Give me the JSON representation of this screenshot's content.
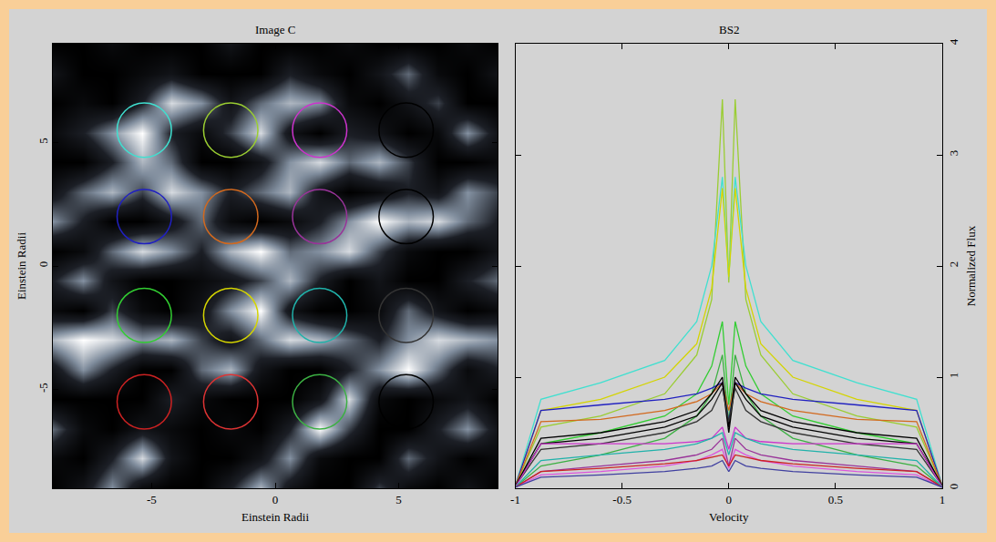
{
  "chart_data": [
    {
      "type": "heatmap",
      "title": "Image C",
      "x_label": "Einstein Radii",
      "y_label": "Einstein Radii",
      "xlim": [
        -9,
        9
      ],
      "ylim": [
        -9,
        9
      ],
      "xticks": [
        -5,
        0,
        5
      ],
      "yticks": [
        -5,
        0,
        5
      ],
      "x": [
        -9,
        -7.8,
        -6.6,
        -5.4,
        -4.2,
        -3,
        -1.8,
        -0.6,
        0.6,
        1.8,
        3,
        4.2,
        5.4,
        6.6,
        7.8,
        9
      ],
      "y": [
        -9,
        -7.8,
        -6.6,
        -5.4,
        -4.2,
        -3,
        -1.8,
        -0.6,
        0.6,
        1.8,
        3,
        4.2,
        5.4,
        6.6,
        7.8,
        9
      ],
      "cells": [
        [
          0,
          0.2,
          0.6,
          0.1,
          0,
          0,
          0.3,
          0.7,
          0.2,
          0,
          0,
          0.4,
          0.1,
          0,
          0.2,
          0
        ],
        [
          0.1,
          0,
          0.3,
          0.8,
          0.2,
          0,
          0,
          0.2,
          0.6,
          0.1,
          0,
          0,
          0.5,
          0.2,
          0,
          0.1
        ],
        [
          0.5,
          0.1,
          0,
          0.2,
          0.1,
          0,
          0.1,
          0,
          0.3,
          0.9,
          0.4,
          0,
          0,
          0.3,
          0.6,
          0.2
        ],
        [
          0,
          0,
          0,
          0,
          0.3,
          0.1,
          0,
          0,
          0,
          0.2,
          0.8,
          0.1,
          0,
          0.1,
          0.2,
          0
        ],
        [
          0.2,
          0.6,
          0.3,
          0,
          0,
          0.5,
          0.7,
          0.2,
          0,
          0,
          0.3,
          0.6,
          0.9,
          0.5,
          0.1,
          0.3
        ],
        [
          0.7,
          0.9,
          0.8,
          0.6,
          0.7,
          0.4,
          0.2,
          0.5,
          0.8,
          0.7,
          0.5,
          0.3,
          0.6,
          0.8,
          0.7,
          0.6
        ],
        [
          0.1,
          0,
          0.4,
          0.1,
          0,
          0.2,
          0.6,
          0.9,
          0.2,
          0,
          0,
          0.1,
          0.5,
          0.2,
          0,
          0.1
        ],
        [
          0.3,
          0.6,
          0.2,
          0,
          0,
          0.1,
          0.2,
          0.4,
          0.7,
          0.3,
          0,
          0.2,
          0,
          0,
          0.3,
          0.5
        ],
        [
          0,
          0.1,
          0.5,
          0.8,
          0.6,
          0.3,
          0.7,
          0.9,
          0.5,
          0.6,
          0.8,
          0.4,
          0.1,
          0,
          0,
          0.2
        ],
        [
          0.6,
          0.3,
          0,
          0,
          0.2,
          0.5,
          0.1,
          0,
          0.1,
          0.3,
          0.6,
          0.9,
          0.7,
          0.8,
          0.5,
          0.3
        ],
        [
          0.2,
          0.5,
          0.7,
          0.4,
          0.8,
          0.6,
          0.3,
          0.5,
          0.7,
          0.2,
          0,
          0.1,
          0.3,
          0.2,
          0.6,
          0.4
        ],
        [
          0,
          0,
          0.3,
          0.7,
          0.5,
          0,
          0,
          0.2,
          0.6,
          0.8,
          0.5,
          0.7,
          0.4,
          0,
          0,
          0.1
        ],
        [
          0.1,
          0.3,
          0.6,
          0.9,
          0.3,
          0.1,
          0.4,
          0.8,
          0.2,
          0,
          0.3,
          0.2,
          0,
          0.1,
          0.6,
          0.2
        ],
        [
          0,
          0.1,
          0,
          0.3,
          0.8,
          0.6,
          0.2,
          0.5,
          0.7,
          0.6,
          0.1,
          0,
          0.2,
          0.4,
          0,
          0
        ],
        [
          0.2,
          0,
          0,
          0.1,
          0.2,
          0,
          0,
          0,
          0.3,
          0.1,
          0,
          0.2,
          0.5,
          0.1,
          0,
          0.2
        ],
        [
          0,
          0,
          0.1,
          0,
          0,
          0,
          0.2,
          0,
          0,
          0,
          0.1,
          0,
          0,
          0,
          0.1,
          0
        ]
      ],
      "circles": [
        {
          "x": -5.3,
          "y": 5.5,
          "r": 1.1,
          "color": "#40e0d0"
        },
        {
          "x": -1.8,
          "y": 5.5,
          "r": 1.1,
          "color": "#9acd32"
        },
        {
          "x": 1.8,
          "y": 5.5,
          "r": 1.1,
          "color": "#cc33cc"
        },
        {
          "x": 5.3,
          "y": 5.5,
          "r": 1.1,
          "color": "#000000"
        },
        {
          "x": -5.3,
          "y": 2,
          "r": 1.1,
          "color": "#2020c0"
        },
        {
          "x": -1.8,
          "y": 2,
          "r": 1.1,
          "color": "#d2691e"
        },
        {
          "x": 1.8,
          "y": 2,
          "r": 1.1,
          "color": "#993399"
        },
        {
          "x": 5.3,
          "y": 2,
          "r": 1.1,
          "color": "#000000"
        },
        {
          "x": -5.3,
          "y": -2,
          "r": 1.1,
          "color": "#32cd32"
        },
        {
          "x": -1.8,
          "y": -2,
          "r": 1.1,
          "color": "#d4d400"
        },
        {
          "x": 1.8,
          "y": -2,
          "r": 1.1,
          "color": "#20b2aa"
        },
        {
          "x": 5.3,
          "y": -2,
          "r": 1.1,
          "color": "#333333"
        },
        {
          "x": -5.3,
          "y": -5.5,
          "r": 1.1,
          "color": "#cc2222"
        },
        {
          "x": -1.8,
          "y": -5.5,
          "r": 1.1,
          "color": "#dd3333"
        },
        {
          "x": 1.8,
          "y": -5.5,
          "r": 1.1,
          "color": "#3cb043"
        },
        {
          "x": 5.3,
          "y": -5.5,
          "r": 1.1,
          "color": "#000000"
        }
      ]
    },
    {
      "type": "line",
      "title": "BS2",
      "x_label": "Velocity",
      "y_label": "Normalized Flux",
      "xlim": [
        -1,
        1
      ],
      "ylim": [
        0,
        4
      ],
      "xticks": [
        -1,
        -0.5,
        0,
        0.5,
        1
      ],
      "yticks": [
        0,
        1,
        2,
        3,
        4
      ],
      "x": [
        -1,
        -0.88,
        -0.6,
        -0.3,
        -0.15,
        -0.08,
        -0.03,
        0,
        0.03,
        0.08,
        0.15,
        0.3,
        0.6,
        0.88,
        1
      ],
      "series": [
        {
          "color": "#9acd32",
          "values": [
            0.02,
            0.55,
            0.65,
            0.85,
            1.2,
            1.7,
            3.5,
            1.85,
            3.5,
            1.7,
            1.2,
            0.85,
            0.65,
            0.55,
            0.02
          ]
        },
        {
          "color": "#40e0d0",
          "values": [
            0.02,
            0.8,
            0.95,
            1.15,
            1.5,
            2.0,
            2.8,
            1.9,
            2.8,
            2.0,
            1.5,
            1.15,
            0.95,
            0.8,
            0.02
          ]
        },
        {
          "color": "#d4d400",
          "values": [
            0.02,
            0.7,
            0.8,
            1.0,
            1.3,
            1.8,
            2.7,
            1.9,
            2.7,
            1.8,
            1.3,
            1.0,
            0.8,
            0.7,
            0.02
          ]
        },
        {
          "color": "#32cd32",
          "values": [
            0.02,
            0.4,
            0.5,
            0.65,
            0.85,
            1.1,
            1.5,
            0.75,
            1.5,
            1.1,
            0.85,
            0.65,
            0.5,
            0.4,
            0.02
          ]
        },
        {
          "color": "#3cb043",
          "values": [
            0.01,
            0.2,
            0.3,
            0.45,
            0.65,
            0.85,
            1.2,
            0.6,
            1.2,
            0.85,
            0.65,
            0.45,
            0.3,
            0.2,
            0.01
          ]
        },
        {
          "color": "#2020c0",
          "values": [
            0.02,
            0.7,
            0.75,
            0.8,
            0.85,
            0.9,
            0.95,
            0.6,
            0.95,
            0.9,
            0.85,
            0.8,
            0.75,
            0.7,
            0.02
          ]
        },
        {
          "color": "#d2691e",
          "values": [
            0.02,
            0.6,
            0.62,
            0.7,
            0.78,
            0.85,
            0.95,
            0.7,
            0.95,
            0.85,
            0.78,
            0.7,
            0.62,
            0.6,
            0.02
          ]
        },
        {
          "color": "#000000",
          "values": [
            0.02,
            0.45,
            0.5,
            0.6,
            0.7,
            0.85,
            1.0,
            0.55,
            1.0,
            0.85,
            0.7,
            0.6,
            0.5,
            0.45,
            0.02
          ]
        },
        {
          "color": "#000000",
          "values": [
            0.02,
            0.4,
            0.45,
            0.55,
            0.65,
            0.8,
            0.95,
            0.5,
            0.95,
            0.8,
            0.65,
            0.55,
            0.45,
            0.4,
            0.02
          ]
        },
        {
          "color": "#333333",
          "values": [
            0.02,
            0.35,
            0.4,
            0.5,
            0.6,
            0.7,
            0.9,
            0.6,
            0.9,
            0.7,
            0.6,
            0.5,
            0.4,
            0.35,
            0.02
          ]
        },
        {
          "color": "#cc33cc",
          "values": [
            0.01,
            0.4,
            0.4,
            0.4,
            0.42,
            0.45,
            0.55,
            0.35,
            0.55,
            0.45,
            0.42,
            0.4,
            0.4,
            0.4,
            0.01
          ]
        },
        {
          "color": "#993399",
          "values": [
            0.01,
            0.15,
            0.2,
            0.25,
            0.3,
            0.35,
            0.45,
            0.2,
            0.45,
            0.35,
            0.3,
            0.25,
            0.2,
            0.15,
            0.01
          ]
        },
        {
          "color": "#dd55dd",
          "values": [
            0.01,
            0.12,
            0.15,
            0.2,
            0.25,
            0.3,
            0.35,
            0.18,
            0.35,
            0.3,
            0.25,
            0.2,
            0.15,
            0.12,
            0.01
          ]
        },
        {
          "color": "#20b2aa",
          "values": [
            0.01,
            0.25,
            0.3,
            0.35,
            0.4,
            0.45,
            0.5,
            0.3,
            0.5,
            0.45,
            0.4,
            0.35,
            0.3,
            0.25,
            0.01
          ]
        },
        {
          "color": "#cc2222",
          "values": [
            0.01,
            0.15,
            0.18,
            0.22,
            0.25,
            0.28,
            0.3,
            0.2,
            0.3,
            0.28,
            0.25,
            0.22,
            0.18,
            0.15,
            0.01
          ]
        },
        {
          "color": "#4040a0",
          "values": [
            0.01,
            0.1,
            0.12,
            0.15,
            0.18,
            0.2,
            0.25,
            0.15,
            0.25,
            0.2,
            0.18,
            0.15,
            0.12,
            0.1,
            0.01
          ]
        }
      ]
    }
  ]
}
